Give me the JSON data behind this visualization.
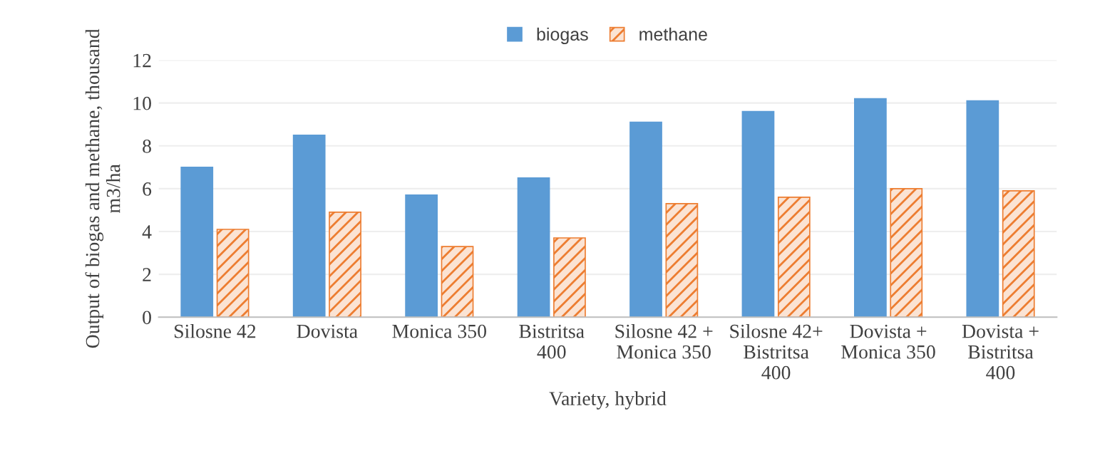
{
  "chart_data": {
    "type": "bar",
    "xlabel": "Variety, hybrid",
    "ylabel": "Output of biogas and methane, thousand\nm3/ha",
    "categories": [
      "Silosne 42",
      "Dovista",
      "Monica 350",
      "Bistritsa\n400",
      "Silosne 42 +\nMonica 350",
      "Silosne 42+\nBistritsa\n400",
      "Dovista +\nMonica 350",
      "Dovista +\nBistritsa\n400"
    ],
    "series": [
      {
        "name": "biogas",
        "color": "#5b9bd5",
        "values": [
          7.0,
          8.5,
          5.7,
          6.5,
          9.1,
          9.6,
          10.2,
          10.1
        ]
      },
      {
        "name": "methane",
        "color": "#ed7d31",
        "values": [
          4.1,
          4.9,
          3.3,
          3.7,
          5.3,
          5.6,
          6.0,
          5.9
        ]
      }
    ],
    "ylim": [
      0,
      12
    ],
    "yticks": [
      0,
      2,
      4,
      6,
      8,
      10,
      12
    ],
    "grid": "y",
    "legend": "top"
  }
}
